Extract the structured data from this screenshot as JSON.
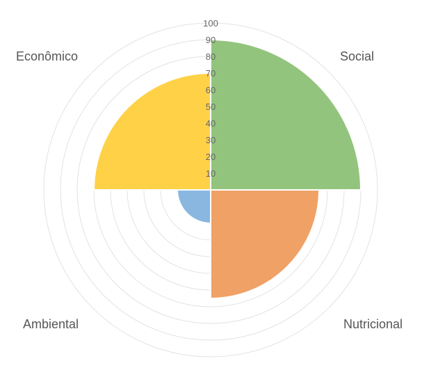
{
  "chart_data": {
    "type": "polar-area",
    "categories": [
      "Social",
      "Nutricional",
      "Ambiental",
      "Econômico"
    ],
    "values": [
      90,
      65,
      20,
      70
    ],
    "colors": [
      "#93c47d",
      "#f0a166",
      "#8ab7e0",
      "#ffd147"
    ],
    "r_range": [
      0,
      100
    ],
    "ticks": [
      "10",
      "20",
      "30",
      "40",
      "50",
      "60",
      "70",
      "80",
      "90",
      "100"
    ],
    "grid": true,
    "legend": "none"
  }
}
